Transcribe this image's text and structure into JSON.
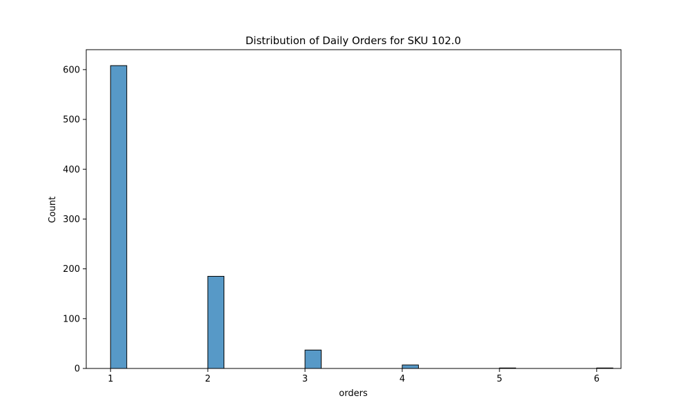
{
  "chart_data": {
    "type": "bar",
    "title": "Distribution of Daily Orders for SKU 102.0",
    "xlabel": "orders",
    "ylabel": "Count",
    "bins": [
      {
        "x_start": 1.0,
        "x_end": 1.1667,
        "count": 608
      },
      {
        "x_start": 2.0,
        "x_end": 2.1667,
        "count": 185
      },
      {
        "x_start": 3.0,
        "x_end": 3.1667,
        "count": 37
      },
      {
        "x_start": 4.0,
        "x_end": 4.1667,
        "count": 7
      },
      {
        "x_start": 5.0,
        "x_end": 5.1667,
        "count": 1
      },
      {
        "x_start": 6.0,
        "x_end": 6.1667,
        "count": 1
      }
    ],
    "xticks": [
      1,
      2,
      3,
      4,
      5,
      6
    ],
    "yticks": [
      0,
      100,
      200,
      300,
      400,
      500,
      600
    ],
    "xlim": [
      0.75,
      6.25
    ],
    "ylim": [
      0,
      640
    ],
    "grid": false,
    "bar_color": "#5799c7",
    "edge_color": "#000000"
  }
}
